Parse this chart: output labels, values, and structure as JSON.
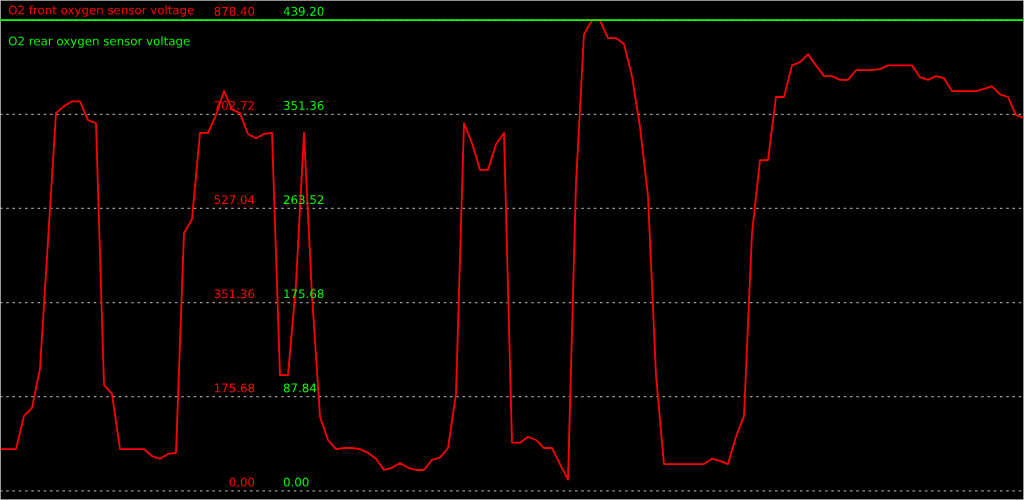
{
  "chart_data": {
    "type": "line",
    "categories": [
      null,
      null,
      null,
      null,
      null,
      null,
      null,
      null,
      null,
      null,
      null,
      null,
      null,
      null,
      null,
      null,
      null,
      null,
      null,
      null,
      null,
      null,
      null,
      null,
      null,
      null,
      null,
      null,
      null,
      null,
      null,
      null,
      null,
      null,
      null,
      null,
      null,
      null,
      null,
      null,
      null,
      null,
      null,
      null,
      null,
      null,
      null,
      null,
      null,
      null,
      null,
      null,
      null,
      null,
      null,
      null,
      null,
      null,
      null,
      null,
      null,
      null,
      null,
      null,
      null,
      null,
      null,
      null,
      null,
      null,
      null,
      null,
      null,
      null,
      null,
      null,
      null,
      null,
      null,
      null,
      null,
      null,
      null,
      null,
      null,
      null,
      null,
      null,
      null,
      null,
      null,
      null,
      null,
      null,
      null,
      null,
      null,
      null,
      null,
      null,
      null,
      null,
      null,
      null,
      null,
      null,
      null,
      null,
      null,
      null,
      null,
      null,
      null,
      null,
      null,
      null,
      null,
      null,
      null,
      null,
      null,
      null,
      null,
      null,
      null,
      null,
      null,
      null,
      null
    ],
    "series": [
      {
        "name": "O2 front oxygen sensor voltage",
        "color": "#ff0000",
        "values": [
          78,
          78,
          78,
          140,
          155,
          228,
          466,
          705,
          718,
          727,
          727,
          692,
          686,
          198,
          181,
          78,
          78,
          78,
          78,
          65,
          60,
          69,
          71,
          481,
          507,
          668,
          668,
          701,
          746,
          712,
          705,
          666,
          658,
          666,
          668,
          216,
          216,
          386,
          668,
          366,
          138,
          95,
          78,
          80,
          80,
          78,
          71,
          60,
          39,
          43,
          52,
          43,
          39,
          39,
          58,
          62,
          80,
          181,
          686,
          649,
          599,
          599,
          647,
          668,
          90,
          90,
          101,
          95,
          80,
          80,
          50,
          21,
          574,
          852,
          878,
          878,
          845,
          845,
          834,
          774,
          679,
          550,
          216,
          50,
          50,
          50,
          50,
          50,
          50,
          60,
          56,
          50,
          101,
          140,
          481,
          617,
          617,
          735,
          735,
          794,
          800,
          815,
          794,
          774,
          774,
          767,
          767,
          785,
          785,
          785,
          787,
          794,
          794,
          794,
          794,
          772,
          767,
          774,
          770,
          746,
          746,
          746,
          746,
          750,
          755,
          740,
          735,
          701,
          696
        ]
      },
      {
        "name": "O2 rear oxygen sensor voltage",
        "color": "#00ff00",
        "axis": "y2",
        "values": [
          439.2,
          439.2,
          439.2,
          439.2,
          439.2,
          439.2,
          439.2,
          439.2,
          439.2,
          439.2,
          439.2,
          439.2,
          439.2,
          439.2,
          439.2,
          439.2,
          439.2,
          439.2,
          439.2,
          439.2,
          439.2,
          439.2,
          439.2,
          439.2,
          439.2,
          439.2,
          439.2,
          439.2,
          439.2,
          439.2,
          439.2,
          439.2,
          439.2,
          439.2,
          439.2,
          439.2,
          439.2,
          439.2,
          439.2,
          439.2,
          439.2,
          439.2,
          439.2,
          439.2,
          439.2,
          439.2,
          439.2,
          439.2,
          439.2,
          439.2,
          439.2,
          439.2,
          439.2,
          439.2,
          439.2,
          439.2,
          439.2,
          439.2,
          439.2,
          439.2,
          439.2,
          439.2,
          439.2,
          439.2,
          439.2,
          439.2,
          439.2,
          439.2,
          439.2,
          439.2,
          439.2,
          439.2,
          439.2,
          439.2,
          439.2,
          439.2,
          439.2,
          439.2,
          439.2,
          439.2,
          439.2,
          439.2,
          439.2,
          439.2,
          439.2,
          439.2,
          439.2,
          439.2,
          439.2,
          439.2,
          439.2,
          439.2,
          439.2,
          439.2,
          439.2,
          439.2,
          439.2,
          439.2,
          439.2,
          439.2,
          439.2,
          439.2,
          439.2,
          439.2,
          439.2,
          439.2,
          439.2,
          439.2,
          439.2,
          439.2,
          439.2,
          439.2,
          439.2,
          439.2,
          439.2,
          439.2,
          439.2,
          439.2,
          439.2,
          439.2,
          439.2,
          439.2,
          439.2,
          439.2,
          439.2,
          439.2,
          439.2,
          439.2,
          439.2
        ]
      }
    ],
    "ylim": [
      -17,
      916
    ],
    "yticks": [
      {
        "value": 0,
        "label": "0.00"
      },
      {
        "value": 175.68,
        "label": "175.68"
      },
      {
        "value": 351.36,
        "label": "351.36"
      },
      {
        "value": 527.04,
        "label": "527.04"
      },
      {
        "value": 702.72,
        "label": "702.72"
      },
      {
        "value": 878.4,
        "label": "878.40"
      }
    ],
    "y2lim": [
      -8.5,
      458
    ],
    "y2ticks": [
      {
        "value": 0,
        "label": "0.00"
      },
      {
        "value": 87.84,
        "label": "87.84"
      },
      {
        "value": 175.68,
        "label": "175.68"
      },
      {
        "value": 263.52,
        "label": "263.52"
      },
      {
        "value": 351.36,
        "label": "351.36"
      },
      {
        "value": 439.2,
        "label": "439.20"
      }
    ],
    "grid": "y",
    "legend": "top left",
    "tick_labels": "y"
  }
}
